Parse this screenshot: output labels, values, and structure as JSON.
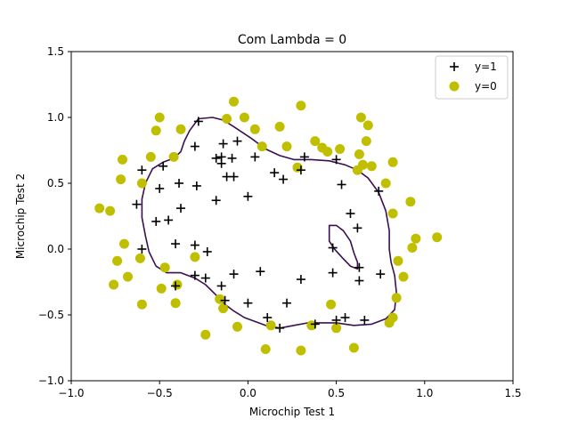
{
  "chart_data": {
    "type": "scatter",
    "title": "Com Lambda = 0",
    "xlabel": "Microchip Test 1",
    "ylabel": "Microchip Test 2",
    "xlim": [
      -1.0,
      1.5
    ],
    "ylim": [
      -1.0,
      1.5
    ],
    "xticks": [
      "−1.0",
      "−0.5",
      "0.0",
      "0.5",
      "1.0",
      "1.5"
    ],
    "yticks": [
      "−1.0",
      "−0.5",
      "0.0",
      "0.5",
      "1.0",
      "1.5"
    ],
    "grid": false,
    "legend_position": "top-right",
    "series": [
      {
        "name": "y=1",
        "marker": "plus",
        "color": "#000000",
        "points": [
          [
            -0.28,
            0.97
          ],
          [
            -0.3,
            0.78
          ],
          [
            -0.18,
            0.69
          ],
          [
            -0.14,
            0.8
          ],
          [
            -0.15,
            0.7
          ],
          [
            -0.15,
            0.65
          ],
          [
            -0.06,
            0.82
          ],
          [
            -0.09,
            0.69
          ],
          [
            0.04,
            0.7
          ],
          [
            -0.12,
            0.55
          ],
          [
            -0.08,
            0.55
          ],
          [
            0.0,
            0.4
          ],
          [
            -0.6,
            0.6
          ],
          [
            -0.48,
            0.63
          ],
          [
            -0.5,
            0.46
          ],
          [
            -0.39,
            0.5
          ],
          [
            -0.29,
            0.48
          ],
          [
            -0.63,
            0.34
          ],
          [
            -0.38,
            0.31
          ],
          [
            -0.52,
            0.21
          ],
          [
            -0.45,
            0.22
          ],
          [
            -0.18,
            0.37
          ],
          [
            -0.6,
            0.0
          ],
          [
            -0.41,
            0.04
          ],
          [
            -0.3,
            0.03
          ],
          [
            -0.23,
            -0.02
          ],
          [
            -0.3,
            -0.2
          ],
          [
            -0.24,
            -0.22
          ],
          [
            -0.41,
            -0.28
          ],
          [
            -0.15,
            -0.28
          ],
          [
            -0.08,
            -0.19
          ],
          [
            -0.13,
            -0.39
          ],
          [
            0.07,
            -0.17
          ],
          [
            0.0,
            -0.41
          ],
          [
            0.11,
            -0.52
          ],
          [
            0.18,
            -0.6
          ],
          [
            0.22,
            -0.41
          ],
          [
            0.3,
            -0.23
          ],
          [
            0.3,
            0.6
          ],
          [
            0.32,
            0.7
          ],
          [
            0.15,
            0.58
          ],
          [
            0.2,
            0.53
          ],
          [
            0.5,
            0.68
          ],
          [
            0.53,
            0.49
          ],
          [
            0.58,
            0.27
          ],
          [
            0.62,
            0.16
          ],
          [
            0.48,
            0.01
          ],
          [
            0.48,
            -0.18
          ],
          [
            0.63,
            -0.14
          ],
          [
            0.63,
            -0.24
          ],
          [
            0.75,
            -0.19
          ],
          [
            0.74,
            0.44
          ],
          [
            0.5,
            -0.54
          ],
          [
            0.55,
            -0.52
          ],
          [
            0.66,
            -0.54
          ],
          [
            0.38,
            -0.57
          ]
        ]
      },
      {
        "name": "y=0",
        "marker": "circle",
        "color": "#bfbf00",
        "points": [
          [
            -0.5,
            1.0
          ],
          [
            -0.38,
            0.91
          ],
          [
            -0.52,
            0.9
          ],
          [
            -0.08,
            1.12
          ],
          [
            -0.12,
            0.99
          ],
          [
            -0.02,
            1.0
          ],
          [
            0.3,
            1.09
          ],
          [
            0.18,
            0.93
          ],
          [
            0.04,
            0.91
          ],
          [
            0.22,
            0.78
          ],
          [
            0.08,
            0.78
          ],
          [
            -0.42,
            0.7
          ],
          [
            -0.55,
            0.7
          ],
          [
            -0.71,
            0.68
          ],
          [
            -0.72,
            0.53
          ],
          [
            -0.6,
            0.5
          ],
          [
            -0.84,
            0.31
          ],
          [
            -0.78,
            0.29
          ],
          [
            -0.7,
            0.04
          ],
          [
            -0.61,
            -0.07
          ],
          [
            -0.74,
            -0.09
          ],
          [
            -0.68,
            -0.21
          ],
          [
            -0.76,
            -0.27
          ],
          [
            -0.49,
            -0.3
          ],
          [
            -0.47,
            -0.14
          ],
          [
            -0.4,
            -0.27
          ],
          [
            -0.3,
            -0.06
          ],
          [
            -0.41,
            -0.41
          ],
          [
            -0.6,
            -0.42
          ],
          [
            -0.16,
            -0.38
          ],
          [
            -0.14,
            -0.45
          ],
          [
            -0.24,
            -0.65
          ],
          [
            -0.06,
            -0.59
          ],
          [
            0.13,
            -0.58
          ],
          [
            0.1,
            -0.76
          ],
          [
            0.3,
            -0.77
          ],
          [
            0.36,
            -0.58
          ],
          [
            0.47,
            -0.42
          ],
          [
            0.5,
            -0.6
          ],
          [
            0.6,
            -0.75
          ],
          [
            0.82,
            -0.52
          ],
          [
            0.8,
            -0.56
          ],
          [
            0.84,
            -0.37
          ],
          [
            0.88,
            -0.21
          ],
          [
            0.85,
            -0.09
          ],
          [
            0.93,
            0.01
          ],
          [
            0.95,
            0.08
          ],
          [
            1.07,
            0.09
          ],
          [
            0.92,
            0.36
          ],
          [
            0.82,
            0.27
          ],
          [
            0.78,
            0.5
          ],
          [
            0.82,
            0.66
          ],
          [
            0.65,
            0.64
          ],
          [
            0.62,
            0.6
          ],
          [
            0.63,
            0.72
          ],
          [
            0.68,
            0.94
          ],
          [
            0.64,
            1.0
          ],
          [
            0.67,
            0.82
          ],
          [
            0.52,
            0.76
          ],
          [
            0.38,
            0.82
          ],
          [
            0.28,
            0.62
          ],
          [
            0.42,
            0.77
          ],
          [
            0.45,
            0.74
          ],
          [
            0.7,
            0.63
          ]
        ]
      }
    ],
    "decision_boundary": {
      "color": "#3b0f50",
      "outer": [
        [
          -0.28,
          0.99
        ],
        [
          -0.2,
          1.0
        ],
        [
          -0.14,
          0.98
        ],
        [
          -0.08,
          0.93
        ],
        [
          0.02,
          0.84
        ],
        [
          0.1,
          0.76
        ],
        [
          0.18,
          0.71
        ],
        [
          0.26,
          0.68
        ],
        [
          0.36,
          0.68
        ],
        [
          0.46,
          0.67
        ],
        [
          0.55,
          0.64
        ],
        [
          0.62,
          0.6
        ],
        [
          0.68,
          0.54
        ],
        [
          0.74,
          0.43
        ],
        [
          0.78,
          0.29
        ],
        [
          0.8,
          0.14
        ],
        [
          0.8,
          0.0
        ],
        [
          0.81,
          -0.1
        ],
        [
          0.83,
          -0.2
        ],
        [
          0.84,
          -0.33
        ],
        [
          0.83,
          -0.46
        ],
        [
          0.78,
          -0.53
        ],
        [
          0.7,
          -0.57
        ],
        [
          0.6,
          -0.58
        ],
        [
          0.5,
          -0.56
        ],
        [
          0.42,
          -0.56
        ],
        [
          0.34,
          -0.56
        ],
        [
          0.26,
          -0.58
        ],
        [
          0.18,
          -0.6
        ],
        [
          0.1,
          -0.58
        ],
        [
          0.04,
          -0.55
        ],
        [
          -0.02,
          -0.52
        ],
        [
          -0.08,
          -0.47
        ],
        [
          -0.13,
          -0.42
        ],
        [
          -0.18,
          -0.35
        ],
        [
          -0.24,
          -0.27
        ],
        [
          -0.3,
          -0.22
        ],
        [
          -0.38,
          -0.18
        ],
        [
          -0.46,
          -0.18
        ],
        [
          -0.52,
          -0.13
        ],
        [
          -0.56,
          -0.02
        ],
        [
          -0.58,
          0.1
        ],
        [
          -0.6,
          0.24
        ],
        [
          -0.6,
          0.38
        ],
        [
          -0.58,
          0.5
        ],
        [
          -0.54,
          0.61
        ],
        [
          -0.48,
          0.66
        ],
        [
          -0.42,
          0.69
        ],
        [
          -0.38,
          0.74
        ],
        [
          -0.36,
          0.82
        ],
        [
          -0.33,
          0.9
        ],
        [
          -0.28,
          0.99
        ]
      ],
      "inner": [
        [
          0.46,
          0.18
        ],
        [
          0.5,
          0.18
        ],
        [
          0.54,
          0.14
        ],
        [
          0.58,
          0.06
        ],
        [
          0.6,
          -0.03
        ],
        [
          0.62,
          -0.1
        ],
        [
          0.62,
          -0.15
        ],
        [
          0.58,
          -0.13
        ],
        [
          0.53,
          -0.06
        ],
        [
          0.49,
          0.0
        ],
        [
          0.46,
          0.06
        ],
        [
          0.46,
          0.12
        ],
        [
          0.46,
          0.18
        ]
      ]
    }
  }
}
